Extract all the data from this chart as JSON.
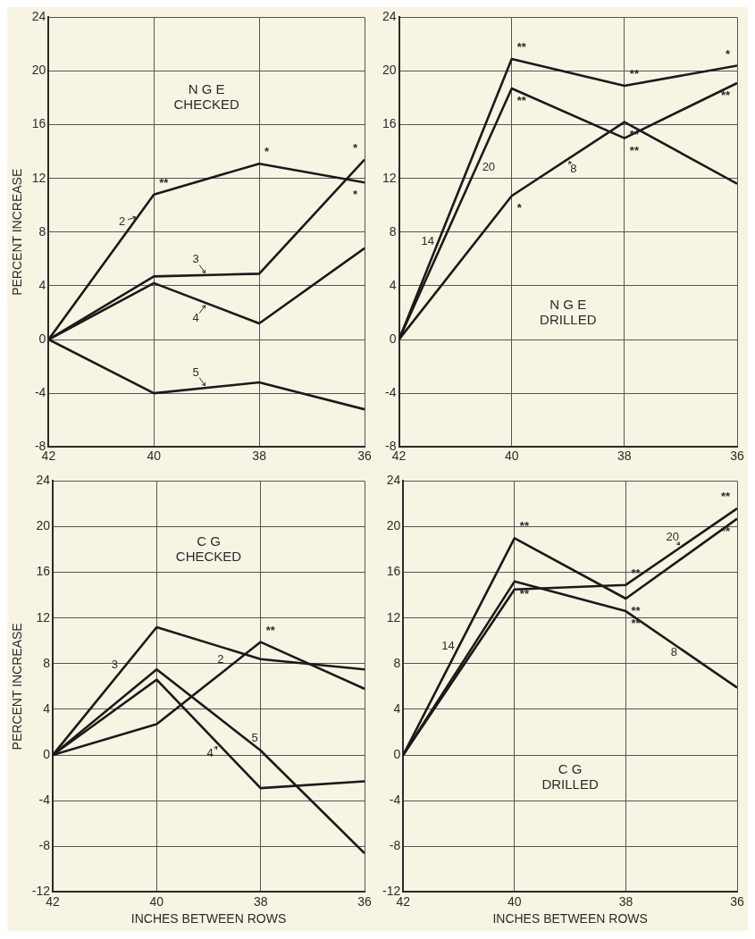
{
  "chart_data": [
    {
      "type": "line",
      "title": "N G E\nCHECKED",
      "ylabel": "PERCENT INCREASE",
      "x": [
        42,
        40,
        38,
        36
      ],
      "xlim": [
        42,
        36
      ],
      "xticks": [
        42,
        40,
        38,
        36
      ],
      "ylim": [
        -8,
        24
      ],
      "yticks": [
        -8,
        -4,
        0,
        4,
        8,
        12,
        16,
        20,
        24
      ],
      "grid": true,
      "marker": "none",
      "line_style": "solid",
      "series": [
        {
          "name": "2",
          "color": "#1a1a1a",
          "values": [
            0,
            10.8,
            13.1,
            11.7
          ]
        },
        {
          "name": "3",
          "color": "#1a1a1a",
          "values": [
            0,
            4.7,
            4.9,
            13.4
          ]
        },
        {
          "name": "4",
          "color": "#1a1a1a",
          "values": [
            0,
            4.2,
            1.2,
            6.8
          ]
        },
        {
          "name": "5",
          "color": "#1a1a1a",
          "values": [
            0,
            -4.0,
            -3.2,
            -5.2
          ]
        }
      ],
      "annotations": [
        {
          "text": "**",
          "x": 40,
          "y": 10.8
        },
        {
          "text": "*",
          "x": 38,
          "y": 13.1
        },
        {
          "text": "*",
          "x": 36,
          "y": 13.4
        },
        {
          "text": "*",
          "x": 36,
          "y": 11.7
        }
      ]
    },
    {
      "type": "line",
      "title": "N G E\nDRILLED",
      "x": [
        42,
        40,
        38,
        36
      ],
      "xlim": [
        42,
        36
      ],
      "xticks": [
        42,
        40,
        38,
        36
      ],
      "ylim": [
        -8,
        24
      ],
      "yticks": [
        -8,
        -4,
        0,
        4,
        8,
        12,
        16,
        20,
        24
      ],
      "grid": true,
      "marker": "none",
      "line_style": "solid",
      "series": [
        {
          "name": "14",
          "color": "#1a1a1a",
          "values": [
            0,
            20.9,
            18.9,
            20.4
          ]
        },
        {
          "name": "20",
          "color": "#1a1a1a",
          "values": [
            0,
            18.7,
            15.0,
            19.1
          ]
        },
        {
          "name": "8",
          "color": "#1a1a1a",
          "values": [
            0,
            10.7,
            16.2,
            11.6
          ]
        }
      ],
      "annotations": [
        {
          "text": "**",
          "x": 40,
          "y": 20.9
        },
        {
          "text": "**",
          "x": 40,
          "y": 18.7
        },
        {
          "text": "*",
          "x": 40,
          "y": 10.7
        },
        {
          "text": "**",
          "x": 38,
          "y": 18.9
        },
        {
          "text": "**",
          "x": 38,
          "y": 16.2
        },
        {
          "text": "**",
          "x": 38,
          "y": 15.0
        },
        {
          "text": "*",
          "x": 36,
          "y": 20.4
        },
        {
          "text": "**",
          "x": 36,
          "y": 19.1
        }
      ]
    },
    {
      "type": "line",
      "title": "C G\nCHECKED",
      "xlabel": "INCHES BETWEEN ROWS",
      "ylabel": "PERCENT INCREASE",
      "x": [
        42,
        40,
        38,
        36
      ],
      "xlim": [
        42,
        36
      ],
      "xticks": [
        42,
        40,
        38,
        36
      ],
      "ylim": [
        -12,
        24
      ],
      "yticks": [
        -12,
        -8,
        -4,
        0,
        4,
        8,
        12,
        16,
        20,
        24
      ],
      "grid": true,
      "marker": "none",
      "line_style": "solid",
      "series": [
        {
          "name": "3",
          "color": "#1a1a1a",
          "values": [
            0,
            11.2,
            8.4,
            7.5
          ]
        },
        {
          "name": "2",
          "color": "#1a1a1a",
          "values": [
            0,
            2.7,
            9.9,
            5.8
          ]
        },
        {
          "name": "5",
          "color": "#1a1a1a",
          "values": [
            0,
            7.5,
            0.4,
            -8.6
          ]
        },
        {
          "name": "4",
          "color": "#1a1a1a",
          "values": [
            0,
            6.6,
            -2.9,
            -2.3
          ]
        }
      ],
      "annotations": [
        {
          "text": "**",
          "x": 38,
          "y": 9.9
        }
      ]
    },
    {
      "type": "line",
      "title": "C G\nDRILLED",
      "xlabel": "INCHES BETWEEN ROWS",
      "x": [
        42,
        40,
        38,
        36
      ],
      "xlim": [
        42,
        36
      ],
      "xticks": [
        42,
        40,
        38,
        36
      ],
      "ylim": [
        -12,
        24
      ],
      "yticks": [
        -12,
        -8,
        -4,
        0,
        4,
        8,
        12,
        16,
        20,
        24
      ],
      "grid": true,
      "marker": "none",
      "line_style": "solid",
      "series": [
        {
          "name": "14",
          "color": "#1a1a1a",
          "values": [
            0,
            19.0,
            13.7,
            20.7
          ]
        },
        {
          "name": "20",
          "color": "#1a1a1a",
          "values": [
            0,
            14.5,
            14.9,
            21.6
          ]
        },
        {
          "name": "8",
          "color": "#1a1a1a",
          "values": [
            0,
            15.2,
            12.6,
            5.9
          ]
        }
      ],
      "annotations": [
        {
          "text": "**",
          "x": 40,
          "y": 19.0
        },
        {
          "text": "**",
          "x": 40,
          "y": 15.2
        },
        {
          "text": "**",
          "x": 38,
          "y": 14.9
        },
        {
          "text": "**",
          "x": 38,
          "y": 13.7
        },
        {
          "text": "**",
          "x": 38,
          "y": 12.6
        },
        {
          "text": "**",
          "x": 36,
          "y": 21.6
        },
        {
          "text": "**",
          "x": 36,
          "y": 20.7
        }
      ]
    }
  ]
}
